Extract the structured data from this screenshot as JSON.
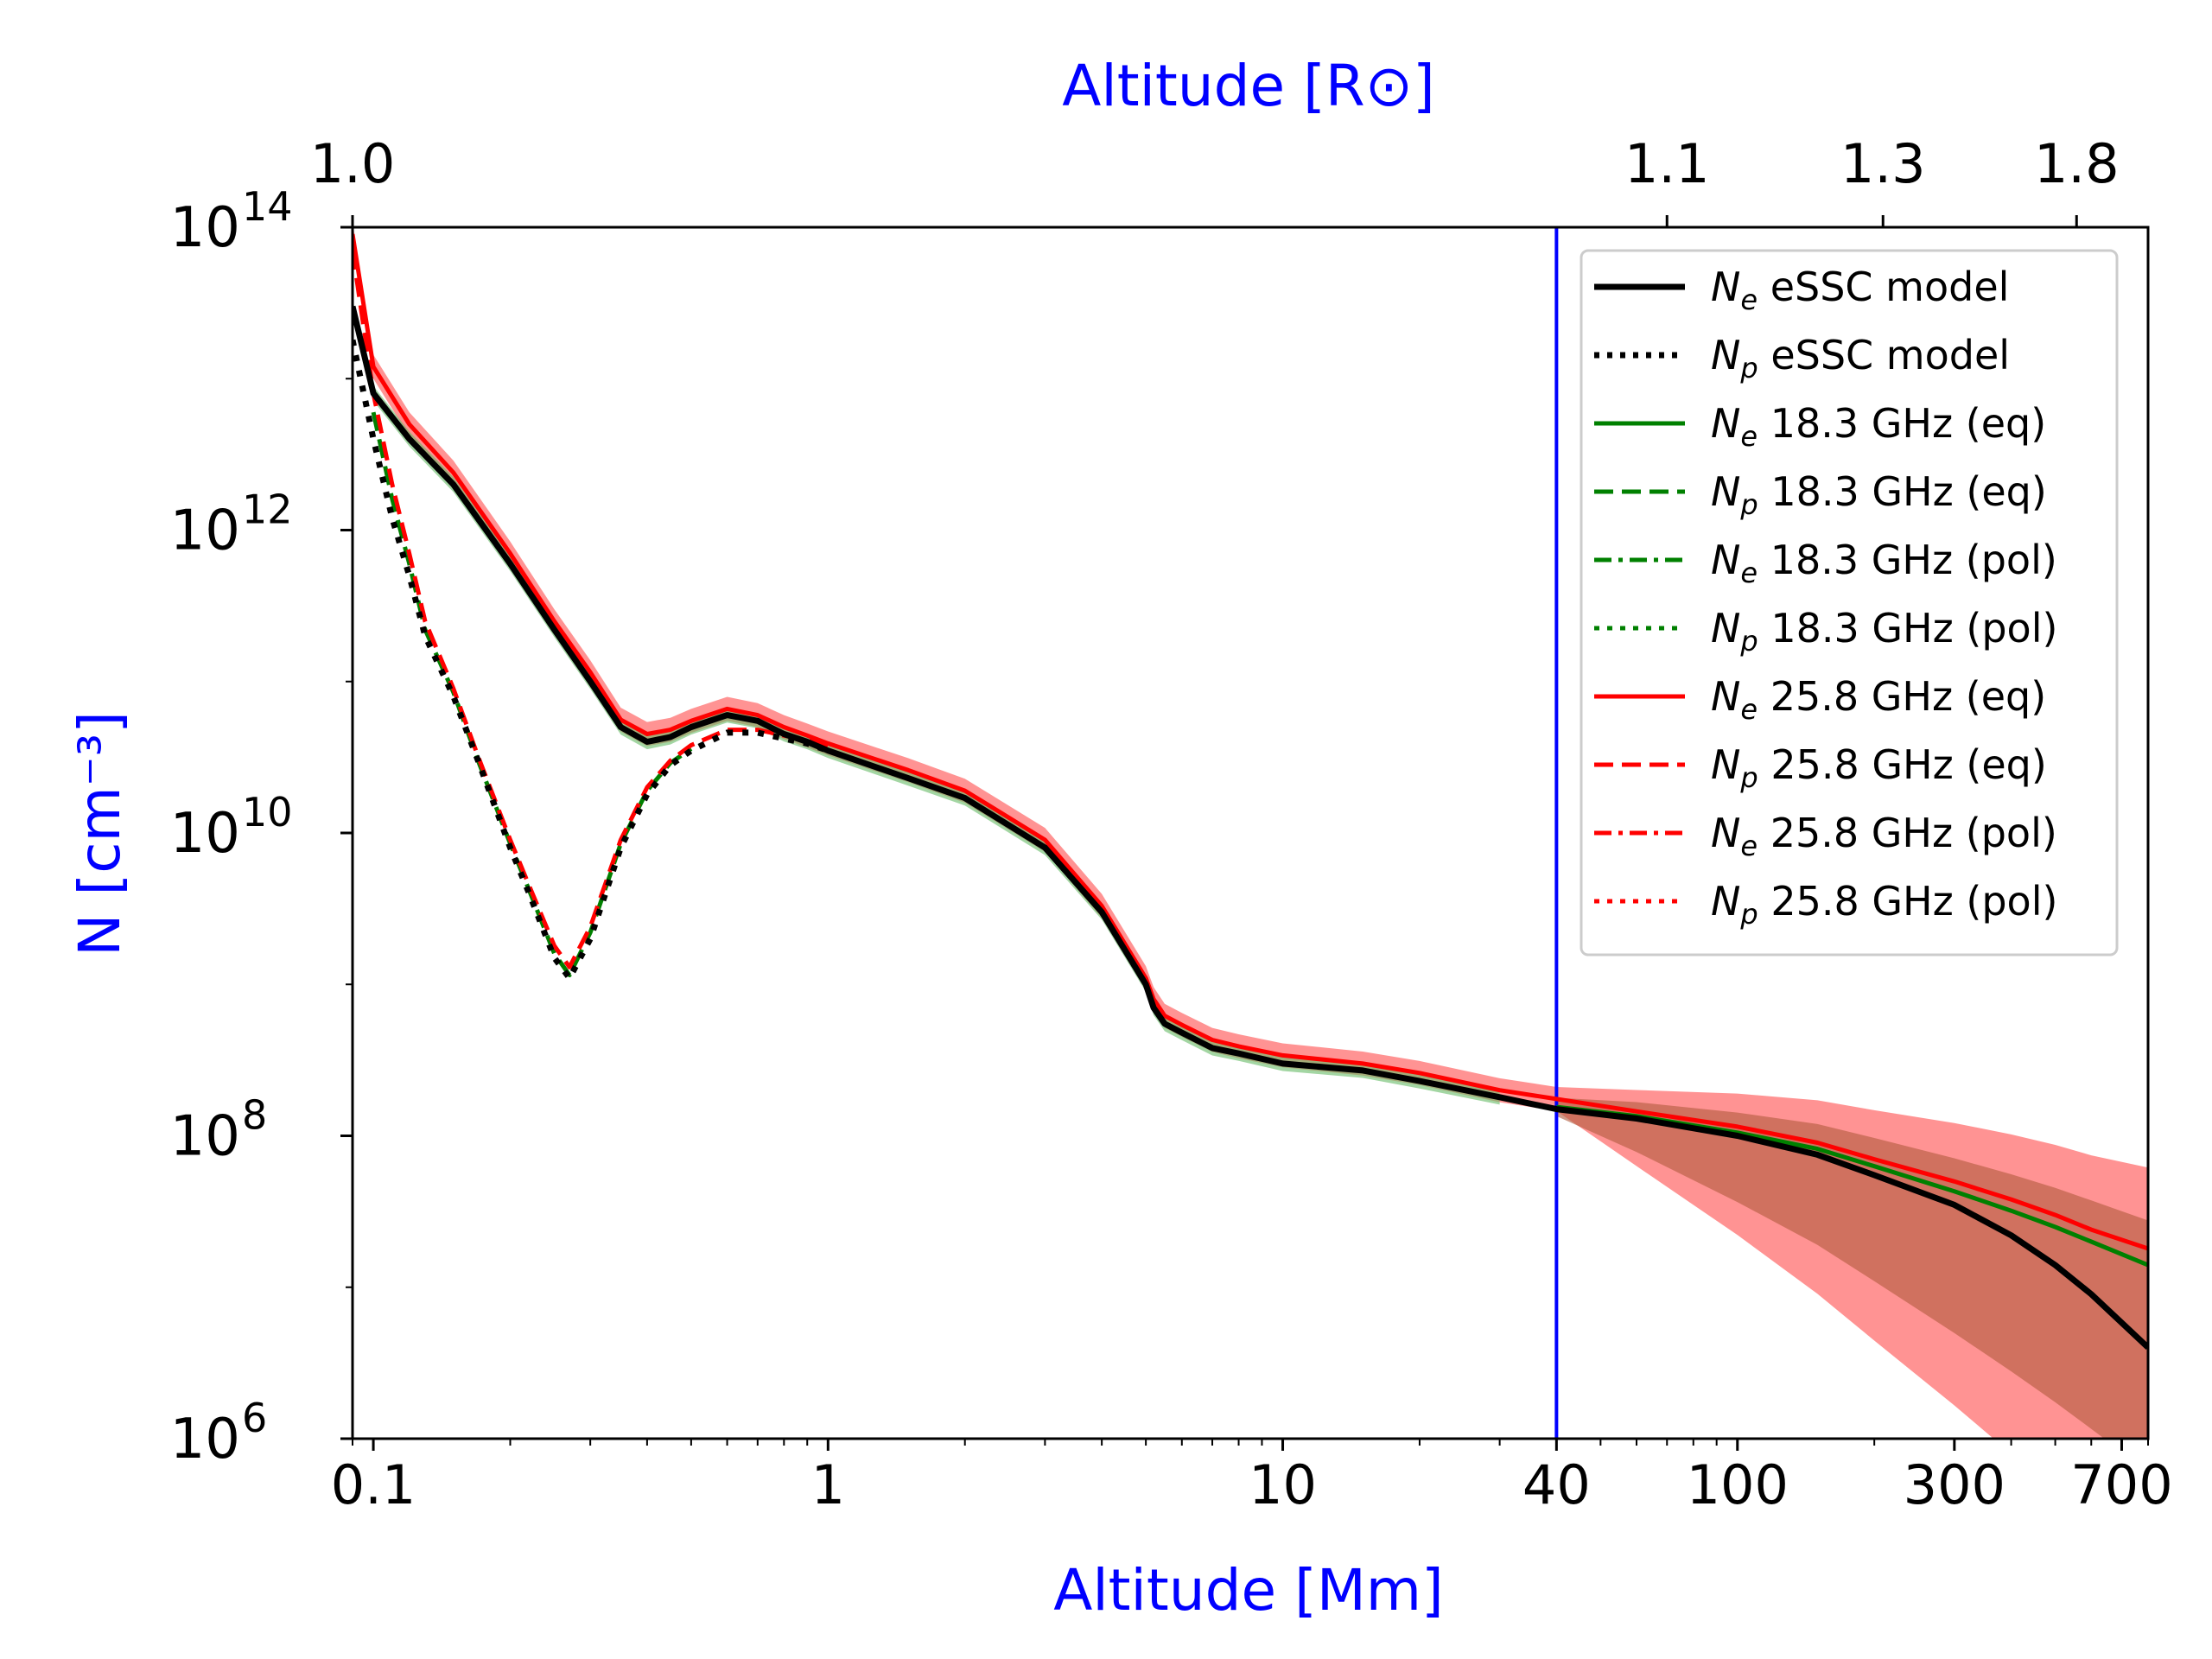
{
  "chart_data": {
    "type": "line",
    "title": "",
    "xlabel": "Altitude [Mm]",
    "ylabel": "N [cm⁻³]",
    "top_xlabel": "Altitude [R⊙]",
    "xscale": "log",
    "yscale": "log",
    "xlim": [
      0.09,
      800
    ],
    "ylim": [
      1000000.0,
      100000000000000.0
    ],
    "x_ticks": [
      {
        "value": 0.1,
        "label": "0.1"
      },
      {
        "value": 1,
        "label": "1"
      },
      {
        "value": 10,
        "label": "10"
      },
      {
        "value": 40,
        "label": "40"
      },
      {
        "value": 100,
        "label": "100"
      },
      {
        "value": 300,
        "label": "300"
      },
      {
        "value": 700,
        "label": "700"
      }
    ],
    "y_ticks": [
      {
        "value": 1000000.0,
        "mantissa": "10",
        "exp": "6"
      },
      {
        "value": 100000000.0,
        "mantissa": "10",
        "exp": "8"
      },
      {
        "value": 10000000000.0,
        "mantissa": "10",
        "exp": "10"
      },
      {
        "value": 1000000000000.0,
        "mantissa": "10",
        "exp": "12"
      },
      {
        "value": 100000000000000.0,
        "mantissa": "10",
        "exp": "14"
      }
    ],
    "top_ticks": [
      {
        "altitude_mm": 0.09,
        "label": "1.0"
      },
      {
        "altitude_mm": 70,
        "label": "1.1"
      },
      {
        "altitude_mm": 209,
        "label": "1.3"
      },
      {
        "altitude_mm": 557,
        "label": "1.8"
      }
    ],
    "vertical_line": {
      "x": 40,
      "color": "#0000ff"
    },
    "colors": {
      "label": "#0000ff",
      "black": "#000000",
      "green": "#008000",
      "red": "#ff0000",
      "red_band": "#ff8080",
      "green_band": "#66bb66"
    },
    "legend": {
      "location": "upper right",
      "entries": [
        {
          "sym": "N",
          "sub": "e",
          "text": " eSSC model",
          "color": "#000000",
          "style": "solid"
        },
        {
          "sym": "N",
          "sub": "p",
          "text": " eSSC model",
          "color": "#000000",
          "style": "dotted"
        },
        {
          "sym": "N",
          "sub": "e",
          "text": " 18.3 GHz (eq)",
          "color": "#008000",
          "style": "solid"
        },
        {
          "sym": "N",
          "sub": "p",
          "text": " 18.3 GHz (eq)",
          "color": "#008000",
          "style": "dashed"
        },
        {
          "sym": "N",
          "sub": "e",
          "text": " 18.3 GHz (pol)",
          "color": "#008000",
          "style": "dashdot"
        },
        {
          "sym": "N",
          "sub": "p",
          "text": " 18.3 GHz (pol)",
          "color": "#008000",
          "style": "dotted"
        },
        {
          "sym": "N",
          "sub": "e",
          "text": " 25.8 GHz (eq)",
          "color": "#ff0000",
          "style": "solid"
        },
        {
          "sym": "N",
          "sub": "p",
          "text": " 25.8 GHz (eq)",
          "color": "#ff0000",
          "style": "dashed"
        },
        {
          "sym": "N",
          "sub": "e",
          "text": " 25.8 GHz (pol)",
          "color": "#ff0000",
          "style": "dashdot"
        },
        {
          "sym": "N",
          "sub": "p",
          "text": " 25.8 GHz (pol)",
          "color": "#ff0000",
          "style": "dotted"
        }
      ]
    },
    "series": [
      {
        "name": "Ne eSSC model",
        "color": "#000000",
        "style": "solid",
        "x": [
          0.09,
          0.1,
          0.12,
          0.15,
          0.2,
          0.25,
          0.3,
          0.35,
          0.4,
          0.45,
          0.5,
          0.6,
          0.7,
          0.8,
          0.9,
          1,
          1.5,
          2,
          3,
          4,
          5,
          5.2,
          5.5,
          6,
          7,
          8,
          10,
          15,
          20,
          30,
          40,
          60,
          100,
          150,
          200,
          300,
          400,
          500,
          600,
          800
        ],
        "y": [
          30000000000000.0,
          8000000000000.0,
          4000000000000.0,
          2000000000000.0,
          600000000000.0,
          220000000000.0,
          100000000000.0,
          50000000000.0,
          40000000000.0,
          43000000000.0,
          50000000000.0,
          60000000000.0,
          55000000000.0,
          45000000000.0,
          40000000000.0,
          35000000000.0,
          23000000000.0,
          17000000000.0,
          8000000000.0,
          3000000000.0,
          1000000000.0,
          700000000.0,
          550000000.0,
          480000000.0,
          380000000.0,
          350000000.0,
          300000000.0,
          270000000.0,
          230000000.0,
          180000000.0,
          150000000.0,
          130000000.0,
          100000000.0,
          75000000.0,
          55000000.0,
          35000000.0,
          22000000.0,
          14000000.0,
          9000000.0,
          4000000.0
        ]
      },
      {
        "name": "Np eSSC model",
        "color": "#000000",
        "style": "dotted",
        "x": [
          0.09,
          0.1,
          0.11,
          0.12,
          0.13,
          0.15,
          0.17,
          0.2,
          0.22,
          0.25,
          0.27,
          0.3,
          0.35,
          0.4,
          0.45,
          0.5,
          0.6,
          0.7,
          0.8,
          0.9,
          1
        ],
        "y": [
          18000000000000.0,
          4000000000000.0,
          1200000000000.0,
          500000000000.0,
          200000000000.0,
          80000000000.0,
          30000000000.0,
          8000000000.0,
          4000000000.0,
          1500000000.0,
          1100000000.0,
          2000000000.0,
          8000000000.0,
          18000000000.0,
          28000000000.0,
          35000000000.0,
          46000000000.0,
          46000000000.0,
          42000000000.0,
          39000000000.0,
          35000000000.0
        ]
      },
      {
        "name": "Ne 25.8 GHz",
        "color": "#ff0000",
        "style": "solid",
        "x": [
          0.09,
          0.1,
          0.12,
          0.15,
          0.2,
          0.25,
          0.3,
          0.35,
          0.4,
          0.45,
          0.5,
          0.6,
          0.7,
          0.8,
          0.9,
          1,
          1.5,
          2,
          3,
          4,
          5,
          5.2,
          5.5,
          6,
          7,
          8,
          10,
          15,
          20,
          30,
          40,
          60,
          100,
          150,
          200,
          300,
          400,
          500,
          600,
          800
        ],
        "y": [
          90000000000000.0,
          12000000000000.0,
          5000000000000.0,
          2400000000000.0,
          700000000000.0,
          250000000000.0,
          115000000000.0,
          56000000000.0,
          45000000000.0,
          48000000000.0,
          55000000000.0,
          66000000000.0,
          60000000000.0,
          50000000000.0,
          44000000000.0,
          39000000000.0,
          26000000000.0,
          19000000000.0,
          9000000000.0,
          3300000000.0,
          1100000000.0,
          800000000.0,
          620000000.0,
          540000000.0,
          430000000.0,
          390000000.0,
          340000000.0,
          300000000.0,
          260000000.0,
          200000000.0,
          175000000.0,
          145000000.0,
          115000000.0,
          90000000.0,
          70000000.0,
          50000000.0,
          38000000.0,
          30000000.0,
          24000000.0,
          18000000.0
        ]
      },
      {
        "name": "Np 25.8 GHz",
        "color": "#ff0000",
        "style": "dashed",
        "x": [
          0.09,
          0.1,
          0.11,
          0.12,
          0.13,
          0.15,
          0.17,
          0.2,
          0.22,
          0.25,
          0.27,
          0.3,
          0.35,
          0.4,
          0.45,
          0.5,
          0.6,
          0.7,
          0.8,
          0.9,
          1
        ],
        "y": [
          70000000000000.0,
          8000000000000.0,
          2000000000000.0,
          700000000000.0,
          250000000000.0,
          90000000000.0,
          32000000000.0,
          9000000000.0,
          4500000000.0,
          1800000000.0,
          1300000000.0,
          2400000000.0,
          9000000000.0,
          20000000000.0,
          30000000000.0,
          38000000000.0,
          48000000000.0,
          48000000000.0,
          44000000000.0,
          41000000000.0,
          38000000000.0
        ]
      },
      {
        "name": "Ne 18.3 GHz",
        "color": "#008000",
        "style": "solid",
        "x": [
          40,
          60,
          100,
          150,
          200,
          300,
          400,
          500,
          600,
          800
        ],
        "y": [
          155000000.0,
          135000000.0,
          105000000.0,
          82000000.0,
          63000000.0,
          43000000.0,
          32000000.0,
          25000000.0,
          20000000.0,
          14000000.0
        ]
      },
      {
        "name": "Np 18.3 GHz",
        "color": "#008000",
        "style": "dashed",
        "x": [
          0.1,
          0.11,
          0.12,
          0.13,
          0.15,
          0.17,
          0.2,
          0.22,
          0.25,
          0.27,
          0.3,
          0.35,
          0.4,
          0.45,
          0.5
        ],
        "y": [
          6000000000000.0,
          1600000000000.0,
          600000000000.0,
          220000000000.0,
          85000000000.0,
          30000000000.0,
          8500000000.0,
          4200000000.0,
          1600000000.0,
          1150000000.0,
          2200000000.0,
          8500000000.0,
          19000000000.0,
          29000000000.0,
          36000000000.0
        ]
      }
    ]
  }
}
